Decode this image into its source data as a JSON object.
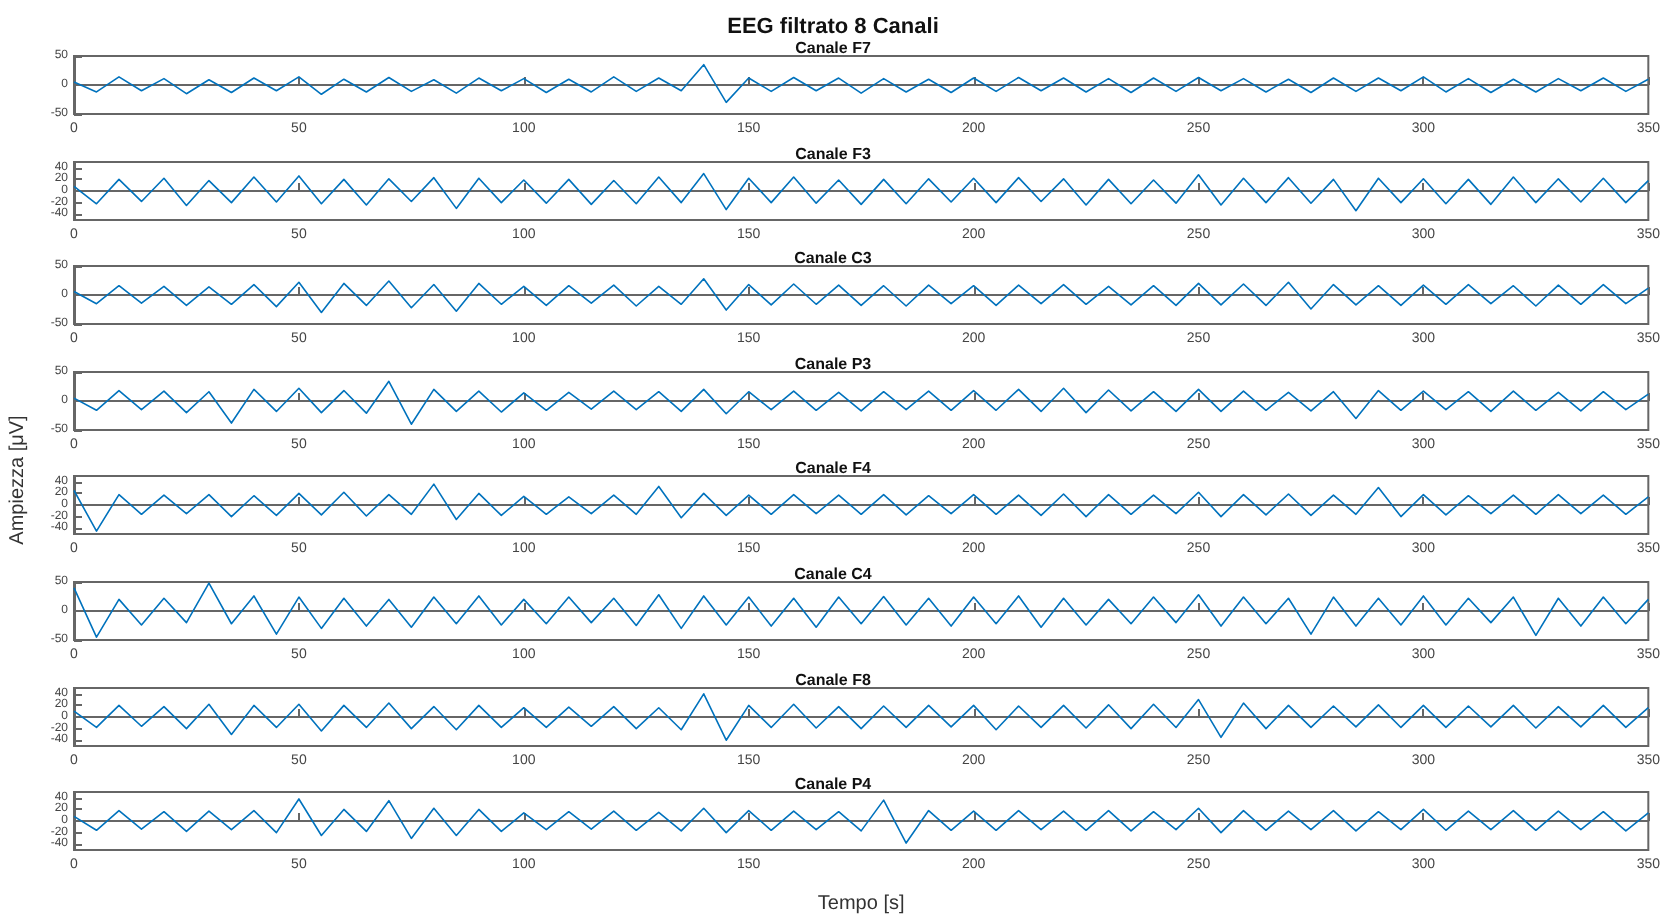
{
  "chart_data": [
    {
      "type": "line",
      "title": "EEG filtrato 8 Canali",
      "subtitle": "Canale F7",
      "marker": "none",
      "xlim": [
        0,
        350
      ],
      "xticks": [
        0,
        50,
        100,
        150,
        200,
        250,
        300,
        350
      ],
      "ylim": [
        -50,
        50
      ],
      "yticks": [
        -50,
        0,
        50
      ],
      "x": [
        0,
        5,
        10,
        15,
        20,
        25,
        30,
        35,
        40,
        45,
        50,
        55,
        60,
        65,
        70,
        75,
        80,
        85,
        90,
        95,
        100,
        105,
        110,
        115,
        120,
        125,
        130,
        135,
        140,
        145,
        150,
        155,
        160,
        165,
        170,
        175,
        180,
        185,
        190,
        195,
        200,
        205,
        210,
        215,
        220,
        225,
        230,
        235,
        240,
        245,
        250,
        255,
        260,
        265,
        270,
        275,
        280,
        285,
        290,
        295,
        300,
        305,
        310,
        315,
        320,
        325,
        330,
        335,
        340,
        345,
        350
      ],
      "series": [
        {
          "color": "#0072bd",
          "values": [
            5,
            -12,
            14,
            -10,
            11,
            -15,
            9,
            -13,
            12,
            -10,
            14,
            -16,
            10,
            -12,
            13,
            -11,
            9,
            -14,
            12,
            -10,
            11,
            -13,
            10,
            -12,
            14,
            -11,
            12,
            -10,
            35,
            -30,
            12,
            -11,
            13,
            -10,
            12,
            -14,
            11,
            -12,
            10,
            -13,
            12,
            -11,
            13,
            -10,
            12,
            -12,
            11,
            -13,
            12,
            -11,
            13,
            -10,
            11,
            -12,
            10,
            -13,
            12,
            -11,
            12,
            -10,
            14,
            -12,
            11,
            -13,
            10,
            -12,
            11,
            -10,
            12,
            -11,
            10
          ]
        }
      ]
    },
    {
      "type": "line",
      "title": "Canale F3",
      "marker": "none",
      "xlim": [
        0,
        350
      ],
      "xticks": [
        0,
        50,
        100,
        150,
        200,
        250,
        300,
        350
      ],
      "ylim": [
        -50,
        50
      ],
      "yticks": [
        -40,
        -20,
        0,
        20,
        40
      ],
      "x": [
        0,
        5,
        10,
        15,
        20,
        25,
        30,
        35,
        40,
        45,
        50,
        55,
        60,
        65,
        70,
        75,
        80,
        85,
        90,
        95,
        100,
        105,
        110,
        115,
        120,
        125,
        130,
        135,
        140,
        145,
        150,
        155,
        160,
        165,
        170,
        175,
        180,
        185,
        190,
        195,
        200,
        205,
        210,
        215,
        220,
        225,
        230,
        235,
        240,
        245,
        250,
        255,
        260,
        265,
        270,
        275,
        280,
        285,
        290,
        295,
        300,
        305,
        310,
        315,
        320,
        325,
        330,
        335,
        340,
        345,
        350
      ],
      "series": [
        {
          "color": "#0072bd",
          "values": [
            8,
            -22,
            20,
            -18,
            22,
            -25,
            18,
            -20,
            24,
            -19,
            26,
            -22,
            20,
            -24,
            21,
            -18,
            23,
            -30,
            22,
            -20,
            19,
            -21,
            20,
            -23,
            18,
            -22,
            24,
            -20,
            30,
            -32,
            22,
            -20,
            24,
            -21,
            19,
            -23,
            20,
            -22,
            21,
            -19,
            22,
            -20,
            23,
            -18,
            21,
            -24,
            20,
            -22,
            19,
            -21,
            28,
            -24,
            22,
            -20,
            23,
            -21,
            20,
            -34,
            22,
            -20,
            21,
            -22,
            20,
            -23,
            24,
            -20,
            21,
            -19,
            22,
            -20,
            18
          ]
        }
      ]
    },
    {
      "type": "line",
      "title": "Canale C3",
      "marker": "none",
      "xlim": [
        0,
        350
      ],
      "xticks": [
        0,
        50,
        100,
        150,
        200,
        250,
        300,
        350
      ],
      "ylim": [
        -50,
        50
      ],
      "yticks": [
        -50,
        0,
        50
      ],
      "x": [
        0,
        5,
        10,
        15,
        20,
        25,
        30,
        35,
        40,
        45,
        50,
        55,
        60,
        65,
        70,
        75,
        80,
        85,
        90,
        95,
        100,
        105,
        110,
        115,
        120,
        125,
        130,
        135,
        140,
        145,
        150,
        155,
        160,
        165,
        170,
        175,
        180,
        185,
        190,
        195,
        200,
        205,
        210,
        215,
        220,
        225,
        230,
        235,
        240,
        245,
        250,
        255,
        260,
        265,
        270,
        275,
        280,
        285,
        290,
        295,
        300,
        305,
        310,
        315,
        320,
        325,
        330,
        335,
        340,
        345,
        350
      ],
      "series": [
        {
          "color": "#0072bd",
          "values": [
            6,
            -15,
            16,
            -14,
            15,
            -18,
            14,
            -16,
            18,
            -20,
            22,
            -30,
            20,
            -18,
            24,
            -22,
            18,
            -28,
            20,
            -16,
            15,
            -18,
            16,
            -14,
            17,
            -19,
            15,
            -16,
            28,
            -26,
            18,
            -17,
            19,
            -16,
            17,
            -18,
            16,
            -19,
            17,
            -15,
            16,
            -18,
            17,
            -15,
            18,
            -16,
            15,
            -17,
            16,
            -18,
            20,
            -17,
            19,
            -18,
            22,
            -24,
            18,
            -17,
            16,
            -18,
            17,
            -16,
            18,
            -15,
            16,
            -19,
            17,
            -16,
            18,
            -15,
            12
          ]
        }
      ]
    },
    {
      "type": "line",
      "title": "Canale P3",
      "ylabel": "Ampiezza [μV]",
      "marker": "none",
      "xlim": [
        0,
        350
      ],
      "xticks": [
        0,
        50,
        100,
        150,
        200,
        250,
        300,
        350
      ],
      "ylim": [
        -50,
        50
      ],
      "yticks": [
        -50,
        0,
        50
      ],
      "x": [
        0,
        5,
        10,
        15,
        20,
        25,
        30,
        35,
        40,
        45,
        50,
        55,
        60,
        65,
        70,
        75,
        80,
        85,
        90,
        95,
        100,
        105,
        110,
        115,
        120,
        125,
        130,
        135,
        140,
        145,
        150,
        155,
        160,
        165,
        170,
        175,
        180,
        185,
        190,
        195,
        200,
        205,
        210,
        215,
        220,
        225,
        230,
        235,
        240,
        245,
        250,
        255,
        260,
        265,
        270,
        275,
        280,
        285,
        290,
        295,
        300,
        305,
        310,
        315,
        320,
        325,
        330,
        335,
        340,
        345,
        350
      ],
      "series": [
        {
          "color": "#0072bd",
          "values": [
            5,
            -16,
            18,
            -15,
            17,
            -20,
            16,
            -38,
            20,
            -18,
            22,
            -20,
            18,
            -21,
            34,
            -40,
            20,
            -18,
            17,
            -19,
            14,
            -16,
            15,
            -14,
            17,
            -15,
            16,
            -18,
            20,
            -22,
            16,
            -15,
            17,
            -16,
            15,
            -17,
            16,
            -15,
            17,
            -16,
            18,
            -16,
            20,
            -18,
            22,
            -20,
            19,
            -17,
            16,
            -18,
            20,
            -18,
            17,
            -16,
            15,
            -17,
            16,
            -30,
            18,
            -16,
            17,
            -15,
            16,
            -18,
            17,
            -16,
            15,
            -17,
            16,
            -15,
            12
          ]
        }
      ]
    },
    {
      "type": "line",
      "title": "Canale F4",
      "marker": "none",
      "xlim": [
        0,
        350
      ],
      "xticks": [
        0,
        50,
        100,
        150,
        200,
        250,
        300,
        350
      ],
      "ylim": [
        -50,
        50
      ],
      "yticks": [
        -40,
        -20,
        0,
        20,
        40
      ],
      "x": [
        0,
        5,
        10,
        15,
        20,
        25,
        30,
        35,
        40,
        45,
        50,
        55,
        60,
        65,
        70,
        75,
        80,
        85,
        90,
        95,
        100,
        105,
        110,
        115,
        120,
        125,
        130,
        135,
        140,
        145,
        150,
        155,
        160,
        165,
        170,
        175,
        180,
        185,
        190,
        195,
        200,
        205,
        210,
        215,
        220,
        225,
        230,
        235,
        240,
        245,
        250,
        255,
        260,
        265,
        270,
        275,
        280,
        285,
        290,
        295,
        300,
        305,
        310,
        315,
        320,
        325,
        330,
        335,
        340,
        345,
        350
      ],
      "series": [
        {
          "color": "#0072bd",
          "values": [
            25,
            -45,
            18,
            -16,
            17,
            -15,
            18,
            -20,
            16,
            -18,
            20,
            -17,
            22,
            -19,
            18,
            -16,
            36,
            -25,
            20,
            -18,
            15,
            -16,
            14,
            -15,
            17,
            -16,
            32,
            -22,
            20,
            -18,
            17,
            -16,
            18,
            -15,
            17,
            -16,
            18,
            -17,
            16,
            -15,
            18,
            -16,
            17,
            -18,
            19,
            -20,
            18,
            -16,
            17,
            -15,
            22,
            -20,
            18,
            -17,
            19,
            -18,
            17,
            -16,
            30,
            -20,
            18,
            -17,
            16,
            -15,
            17,
            -16,
            18,
            -15,
            17,
            -16,
            14
          ]
        }
      ]
    },
    {
      "type": "line",
      "title": "Canale C4",
      "marker": "none",
      "xlim": [
        0,
        350
      ],
      "xticks": [
        0,
        50,
        100,
        150,
        200,
        250,
        300,
        350
      ],
      "ylim": [
        -50,
        50
      ],
      "yticks": [
        -50,
        0,
        50
      ],
      "x": [
        0,
        5,
        10,
        15,
        20,
        25,
        30,
        35,
        40,
        45,
        50,
        55,
        60,
        65,
        70,
        75,
        80,
        85,
        90,
        95,
        100,
        105,
        110,
        115,
        120,
        125,
        130,
        135,
        140,
        145,
        150,
        155,
        160,
        165,
        170,
        175,
        180,
        185,
        190,
        195,
        200,
        205,
        210,
        215,
        220,
        225,
        230,
        235,
        240,
        245,
        250,
        255,
        260,
        265,
        270,
        275,
        280,
        285,
        290,
        295,
        300,
        305,
        310,
        315,
        320,
        325,
        330,
        335,
        340,
        345,
        350
      ],
      "series": [
        {
          "color": "#0072bd",
          "values": [
            40,
            -45,
            20,
            -24,
            22,
            -20,
            48,
            -22,
            26,
            -40,
            24,
            -30,
            22,
            -26,
            20,
            -28,
            24,
            -22,
            26,
            -24,
            20,
            -22,
            24,
            -20,
            22,
            -25,
            28,
            -30,
            26,
            -24,
            24,
            -26,
            22,
            -28,
            24,
            -22,
            25,
            -24,
            22,
            -26,
            24,
            -22,
            26,
            -28,
            22,
            -24,
            20,
            -22,
            24,
            -20,
            28,
            -26,
            24,
            -22,
            22,
            -40,
            24,
            -26,
            22,
            -24,
            26,
            -24,
            22,
            -20,
            24,
            -42,
            22,
            -26,
            24,
            -22,
            20
          ]
        }
      ]
    },
    {
      "type": "line",
      "title": "Canale F8",
      "marker": "none",
      "xlim": [
        0,
        350
      ],
      "xticks": [
        0,
        50,
        100,
        150,
        200,
        250,
        300,
        350
      ],
      "ylim": [
        -50,
        50
      ],
      "yticks": [
        -40,
        -20,
        0,
        20,
        40
      ],
      "x": [
        0,
        5,
        10,
        15,
        20,
        25,
        30,
        35,
        40,
        45,
        50,
        55,
        60,
        65,
        70,
        75,
        80,
        85,
        90,
        95,
        100,
        105,
        110,
        115,
        120,
        125,
        130,
        135,
        140,
        145,
        150,
        155,
        160,
        165,
        170,
        175,
        180,
        185,
        190,
        195,
        200,
        205,
        210,
        215,
        220,
        225,
        230,
        235,
        240,
        245,
        250,
        255,
        260,
        265,
        270,
        275,
        280,
        285,
        290,
        295,
        300,
        305,
        310,
        315,
        320,
        325,
        330,
        335,
        340,
        345,
        350
      ],
      "series": [
        {
          "color": "#0072bd",
          "values": [
            10,
            -18,
            20,
            -16,
            18,
            -20,
            22,
            -30,
            20,
            -18,
            22,
            -24,
            20,
            -18,
            24,
            -20,
            18,
            -22,
            20,
            -18,
            16,
            -18,
            17,
            -16,
            18,
            -20,
            16,
            -22,
            40,
            -40,
            20,
            -18,
            22,
            -19,
            18,
            -20,
            19,
            -18,
            20,
            -17,
            20,
            -22,
            19,
            -18,
            20,
            -19,
            21,
            -20,
            22,
            -18,
            30,
            -35,
            24,
            -20,
            20,
            -18,
            19,
            -17,
            21,
            -18,
            20,
            -18,
            19,
            -17,
            20,
            -19,
            18,
            -17,
            20,
            -18,
            16
          ]
        }
      ]
    },
    {
      "type": "line",
      "title": "Canale P4",
      "xlabel": "Tempo [s]",
      "marker": "none",
      "xlim": [
        0,
        350
      ],
      "xticks": [
        0,
        50,
        100,
        150,
        200,
        250,
        300,
        350
      ],
      "ylim": [
        -50,
        50
      ],
      "yticks": [
        -40,
        -20,
        0,
        20,
        40
      ],
      "x": [
        0,
        5,
        10,
        15,
        20,
        25,
        30,
        35,
        40,
        45,
        50,
        55,
        60,
        65,
        70,
        75,
        80,
        85,
        90,
        95,
        100,
        105,
        110,
        115,
        120,
        125,
        130,
        135,
        140,
        145,
        150,
        155,
        160,
        165,
        170,
        175,
        180,
        185,
        190,
        195,
        200,
        205,
        210,
        215,
        220,
        225,
        230,
        235,
        240,
        245,
        250,
        255,
        260,
        265,
        270,
        275,
        280,
        285,
        290,
        295,
        300,
        305,
        310,
        315,
        320,
        325,
        330,
        335,
        340,
        345,
        350
      ],
      "series": [
        {
          "color": "#0072bd",
          "values": [
            8,
            -16,
            18,
            -14,
            16,
            -18,
            17,
            -15,
            18,
            -20,
            38,
            -25,
            20,
            -18,
            35,
            -30,
            22,
            -25,
            20,
            -18,
            14,
            -15,
            16,
            -14,
            17,
            -16,
            15,
            -17,
            22,
            -20,
            18,
            -16,
            17,
            -15,
            16,
            -17,
            36,
            -38,
            18,
            -16,
            17,
            -16,
            18,
            -15,
            17,
            -16,
            18,
            -17,
            16,
            -15,
            22,
            -20,
            18,
            -16,
            17,
            -15,
            18,
            -17,
            16,
            -15,
            20,
            -16,
            17,
            -15,
            18,
            -16,
            17,
            -15,
            16,
            -17,
            14
          ]
        }
      ]
    }
  ]
}
